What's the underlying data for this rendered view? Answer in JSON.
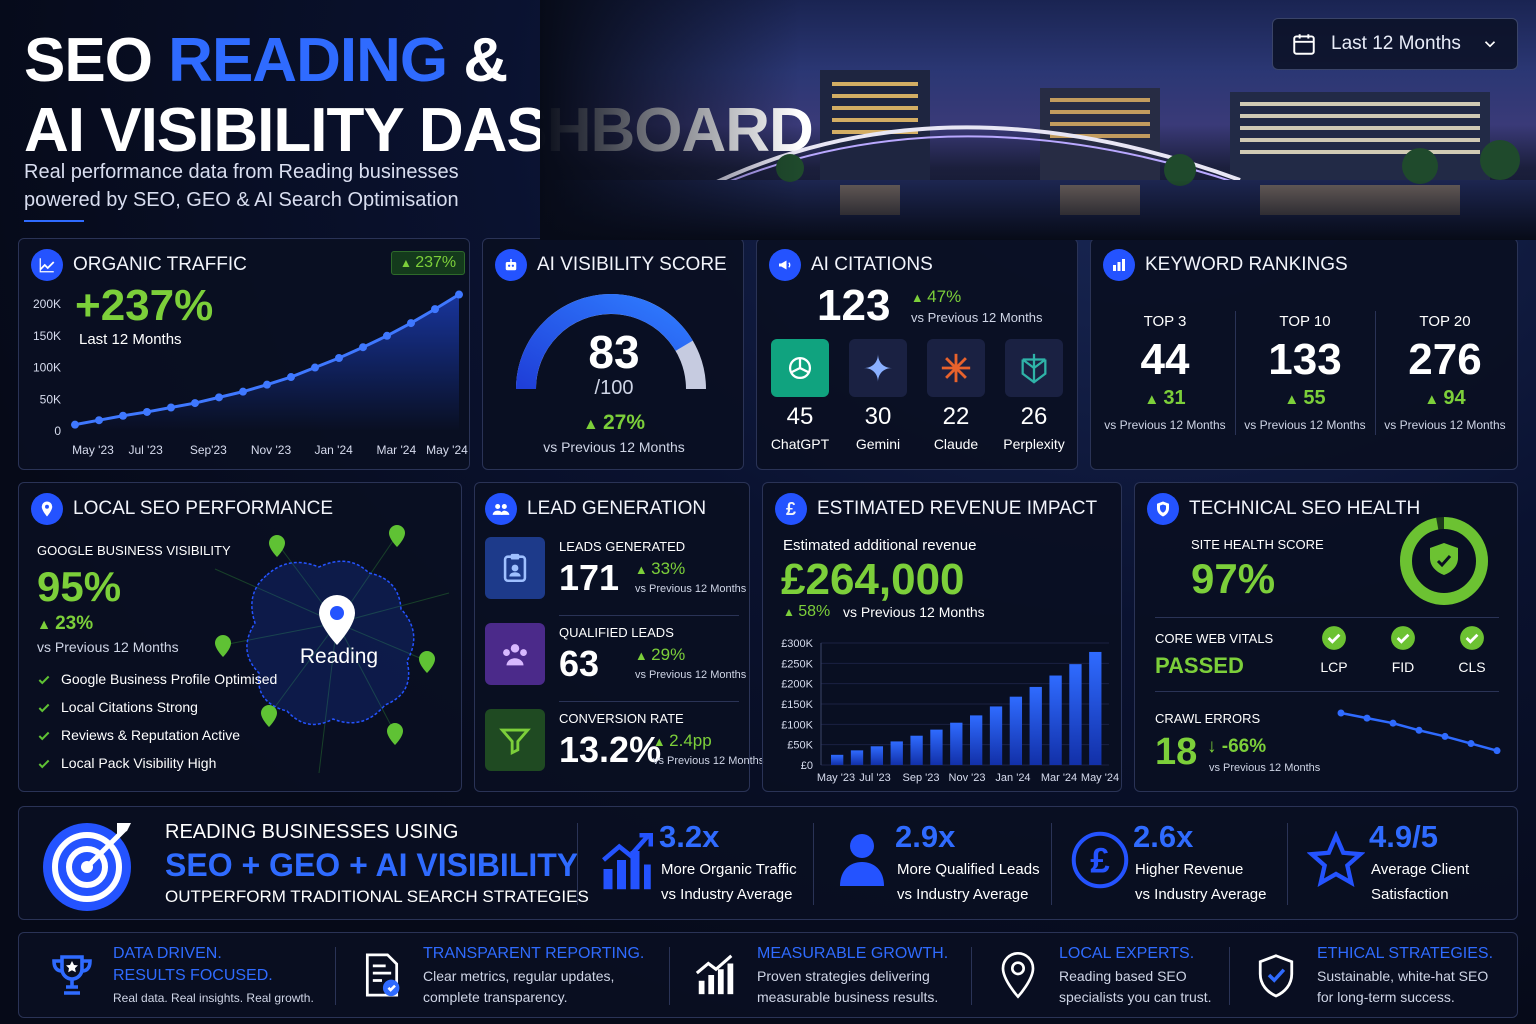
{
  "header": {
    "title_a": "SEO",
    "title_b": "READING",
    "title_c": "&",
    "title_d": "AI VISIBILITY DASHBOARD",
    "subtitle_1": "Real performance data from Reading businesses",
    "subtitle_2": "powered by SEO, GEO & AI Search Optimisation",
    "date_range": "Last 12 Months"
  },
  "organic": {
    "title": "ORGANIC TRAFFIC",
    "badge": "237%",
    "value": "+237%",
    "period": "Last 12 Months",
    "chart_data": {
      "type": "line",
      "y_ticks": [
        "200K",
        "150K",
        "100K",
        "50K",
        "0"
      ],
      "x_ticks": [
        "May '23",
        "Jul '23",
        "Sep'23",
        "Nov '23",
        "Jan '24",
        "Mar '24",
        "May '24"
      ],
      "ylim": [
        0,
        230000
      ],
      "values": [
        10000,
        17000,
        24000,
        30000,
        37000,
        44000,
        53000,
        62000,
        73000,
        85000,
        100000,
        115000,
        132000,
        150000,
        170000,
        192000,
        215000
      ]
    }
  },
  "ai_score": {
    "title": "AI VISIBILITY SCORE",
    "value": "83",
    "max": "/100",
    "score": 83,
    "delta": "27%",
    "delta_label": "vs Previous 12 Months"
  },
  "citations": {
    "title": "AI CITATIONS",
    "value": "123",
    "delta": "47%",
    "delta_label": "vs Previous 12 Months",
    "items": [
      {
        "count": "45",
        "name": "ChatGPT",
        "color": "#10a37f",
        "icon": "chatgpt-icon"
      },
      {
        "count": "30",
        "name": "Gemini",
        "color": "#1a2142",
        "icon": "gemini-icon"
      },
      {
        "count": "22",
        "name": "Claude",
        "color": "#1a2142",
        "icon": "claude-icon"
      },
      {
        "count": "26",
        "name": "Perplexity",
        "color": "#1a2142",
        "icon": "perplexity-icon"
      }
    ]
  },
  "keywords": {
    "title": "KEYWORD RANKINGS",
    "cols": [
      {
        "label": "TOP 3",
        "value": "44",
        "delta": "31",
        "note": "vs Previous 12 Months"
      },
      {
        "label": "TOP 10",
        "value": "133",
        "delta": "55",
        "note": "vs Previous 12 Months"
      },
      {
        "label": "TOP 20",
        "value": "276",
        "delta": "94",
        "note": "vs Previous 12 Months"
      }
    ]
  },
  "local": {
    "title": "LOCAL SEO PERFORMANCE",
    "gbv_label": "GOOGLE BUSINESS VISIBILITY",
    "gbv_value": "95%",
    "gbv_delta": "23%",
    "gbv_note": "vs Previous 12 Months",
    "map_label": "Reading",
    "checks": [
      "Google Business Profile Optimised",
      "Local Citations Strong",
      "Reviews & Reputation Active",
      "Local Pack Visibility High"
    ]
  },
  "leads": {
    "title": "LEAD GENERATION",
    "rows": [
      {
        "label": "LEADS GENERATED",
        "value": "171",
        "delta": "33%",
        "note": "vs Previous 12 Months",
        "icon": "clipboard-user-icon"
      },
      {
        "label": "QUALIFIED LEADS",
        "value": "63",
        "delta": "29%",
        "note": "vs Previous 12 Months",
        "icon": "group-icon"
      },
      {
        "label": "CONVERSION RATE",
        "value": "13.2%",
        "delta": "2.4pp",
        "note": "vs Previous 12 Months",
        "icon": "funnel-icon"
      }
    ]
  },
  "revenue": {
    "title": "ESTIMATED REVENUE IMPACT",
    "label": "Estimated additional revenue",
    "value": "£264,000",
    "delta": "58%",
    "note": "vs Previous 12 Months",
    "chart_data": {
      "type": "bar",
      "y_ticks": [
        "£300K",
        "£250K",
        "£200K",
        "£150K",
        "£100K",
        "£50K",
        "£0"
      ],
      "x_ticks": [
        "May '23",
        "Jul '23",
        "Sep '23",
        "Nov '23",
        "Jan '24",
        "Mar '24",
        "May '24"
      ],
      "ylim": [
        0,
        300000
      ],
      "values": [
        25000,
        36000,
        46000,
        58000,
        72000,
        87000,
        104000,
        122000,
        144000,
        168000,
        192000,
        220000,
        248000,
        278000
      ]
    }
  },
  "tech": {
    "title": "TECHNICAL SEO HEALTH",
    "health_label": "SITE HEALTH SCORE",
    "health_value": "97%",
    "health": 97,
    "cwv_label": "CORE WEB VITALS",
    "cwv_value": "PASSED",
    "vitals": [
      "LCP",
      "FID",
      "CLS"
    ],
    "crawl_label": "CRAWL ERRORS",
    "crawl_value": "18",
    "crawl_delta": "-66%",
    "crawl_note": "vs Previous 12 Months",
    "crawl_series": [
      55,
      50,
      45,
      38,
      32,
      25,
      18
    ]
  },
  "banner": {
    "line1": "READING BUSINESSES USING",
    "line2": "SEO + GEO + AI VISIBILITY",
    "line3": "OUTPERFORM TRADITIONAL SEARCH STRATEGIES",
    "stats": [
      {
        "value": "3.2x",
        "l1": "More Organic Traffic",
        "l2": "vs Industry Average",
        "icon": "growth-chart-icon"
      },
      {
        "value": "2.9x",
        "l1": "More Qualified Leads",
        "l2": "vs Industry Average",
        "icon": "person-icon"
      },
      {
        "value": "2.6x",
        "l1": "Higher Revenue",
        "l2": "vs Industry Average",
        "icon": "pound-coin-icon"
      },
      {
        "value": "4.9/5",
        "l1": "Average Client",
        "l2": "Satisfaction",
        "icon": "star-icon"
      }
    ]
  },
  "footer": [
    {
      "t1": "DATA DRIVEN.",
      "t2": "RESULTS FOCUSED.",
      "d": "Real data. Real insights. Real growth.",
      "icon": "trophy-icon"
    },
    {
      "t1": "TRANSPARENT REPORTING.",
      "d1": "Clear metrics, regular updates,",
      "d2": "complete transparency.",
      "icon": "report-icon"
    },
    {
      "t1": "MEASURABLE GROWTH.",
      "d1": "Proven strategies delivering",
      "d2": "measurable business results.",
      "icon": "bar-growth-icon"
    },
    {
      "t1": "LOCAL EXPERTS.",
      "d1": "Reading based SEO",
      "d2": "specialists you can trust.",
      "icon": "location-pin-icon"
    },
    {
      "t1": "ETHICAL STRATEGIES.",
      "d1": "Sustainable, white-hat SEO",
      "d2": "for long-term success.",
      "icon": "shield-check-icon"
    }
  ]
}
